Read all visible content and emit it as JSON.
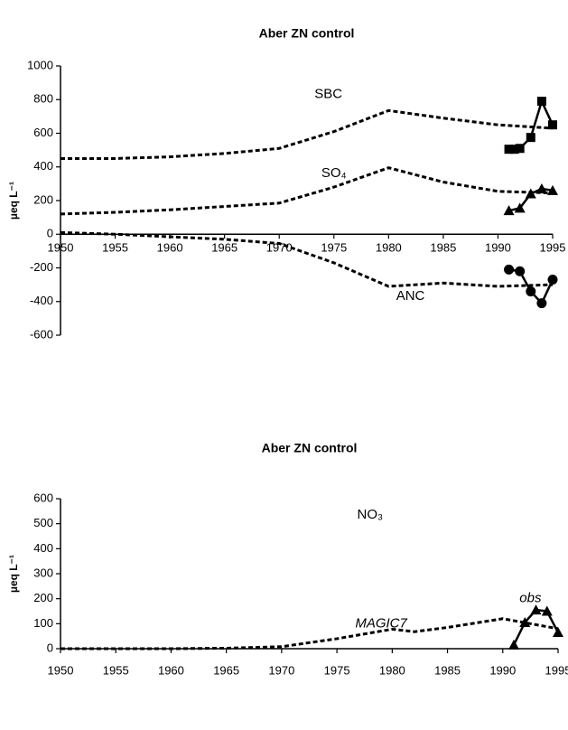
{
  "chart_data": [
    {
      "type": "line",
      "title": "Aber ZN control",
      "ylabel": "µeq L⁻¹",
      "xlim": [
        1950,
        1995
      ],
      "xticks": [
        1950,
        1955,
        1960,
        1965,
        1970,
        1975,
        1980,
        1985,
        1990,
        1995
      ],
      "ylim": [
        -600,
        1000
      ],
      "yticks": [
        -600,
        -400,
        -200,
        0,
        200,
        400,
        600,
        800,
        1000
      ],
      "annotations": [
        "SBC",
        "SO₄",
        "ANC"
      ],
      "series": [
        {
          "color": "#000000",
          "style": "dashed",
          "x": [
            1950,
            1955,
            1960,
            1965,
            1970,
            1975,
            1980,
            1985,
            1990,
            1995
          ],
          "values": [
            450,
            450,
            460,
            480,
            510,
            610,
            735,
            690,
            650,
            630
          ]
        },
        {
          "color": "#000000",
          "style": "solid",
          "marker": "square",
          "x": [
            1991,
            1991.5,
            1992,
            1993,
            1994,
            1995
          ],
          "values": [
            505,
            505,
            510,
            575,
            790,
            650
          ]
        },
        {
          "color": "#000000",
          "style": "dashed",
          "x": [
            1950,
            1955,
            1960,
            1965,
            1970,
            1975,
            1980,
            1985,
            1990,
            1995
          ],
          "values": [
            120,
            130,
            145,
            165,
            185,
            280,
            395,
            310,
            255,
            245
          ]
        },
        {
          "color": "#000000",
          "style": "solid",
          "marker": "triangle",
          "x": [
            1991,
            1992,
            1993,
            1994,
            1995
          ],
          "values": [
            140,
            155,
            240,
            270,
            260
          ]
        },
        {
          "color": "#000000",
          "style": "dashed",
          "x": [
            1950,
            1955,
            1960,
            1965,
            1970,
            1975,
            1980,
            1985,
            1990,
            1995
          ],
          "values": [
            10,
            0,
            -15,
            -30,
            -55,
            -170,
            -310,
            -290,
            -310,
            -300
          ]
        },
        {
          "color": "#000000",
          "style": "solid",
          "marker": "circle",
          "x": [
            1991,
            1992,
            1993,
            1994,
            1995
          ],
          "values": [
            -210,
            -220,
            -340,
            -410,
            -270
          ]
        }
      ]
    },
    {
      "type": "line",
      "title": "Aber ZN control",
      "ylabel": "µeq L⁻¹",
      "xlim": [
        1950,
        1995
      ],
      "xticks": [
        1950,
        1955,
        1960,
        1965,
        1970,
        1975,
        1980,
        1985,
        1990,
        1995
      ],
      "ylim": [
        0,
        600
      ],
      "yticks": [
        0,
        100,
        200,
        300,
        400,
        500,
        600
      ],
      "annotations": [
        "NO₃",
        "MAGIC7",
        "obs"
      ],
      "series": [
        {
          "color": "#000000",
          "style": "dashed",
          "x": [
            1950,
            1960,
            1965,
            1970,
            1975,
            1980,
            1982,
            1985,
            1990,
            1995
          ],
          "values": [
            0,
            0,
            2,
            8,
            40,
            78,
            68,
            85,
            120,
            80
          ]
        },
        {
          "color": "#000000",
          "style": "solid",
          "marker": "triangle",
          "x": [
            1991,
            1992,
            1993,
            1994,
            1995
          ],
          "values": [
            15,
            105,
            155,
            150,
            65
          ]
        }
      ]
    }
  ]
}
